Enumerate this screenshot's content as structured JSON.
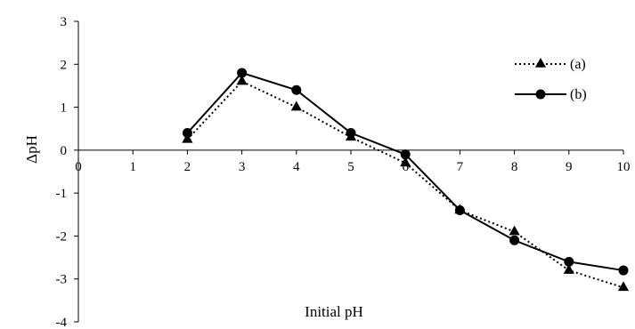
{
  "chart_data": {
    "type": "line",
    "title": "",
    "xlabel": "Initial pH",
    "ylabel": "ΔpH",
    "xlim": [
      0,
      10
    ],
    "ylim": [
      -4,
      3
    ],
    "xticks": [
      0,
      1,
      2,
      3,
      4,
      5,
      6,
      7,
      8,
      9,
      10
    ],
    "yticks": [
      3,
      2,
      1,
      0,
      -1,
      -2,
      -3,
      -4
    ],
    "grid": false,
    "legend_position": "top-right",
    "series": [
      {
        "name": "(a)",
        "style": "dotted",
        "marker": "triangle",
        "color": "#000000",
        "x": [
          2,
          3,
          4,
          5,
          6,
          7,
          8,
          9,
          10
        ],
        "y": [
          0.25,
          1.6,
          1.0,
          0.3,
          -0.3,
          -1.4,
          -1.9,
          -2.8,
          -3.2
        ]
      },
      {
        "name": "(b)",
        "style": "solid",
        "marker": "circle",
        "color": "#000000",
        "x": [
          2,
          3,
          4,
          5,
          6,
          7,
          8,
          9,
          10
        ],
        "y": [
          0.4,
          1.8,
          1.4,
          0.4,
          -0.1,
          -1.4,
          -2.1,
          -2.6,
          -2.8
        ]
      }
    ]
  }
}
